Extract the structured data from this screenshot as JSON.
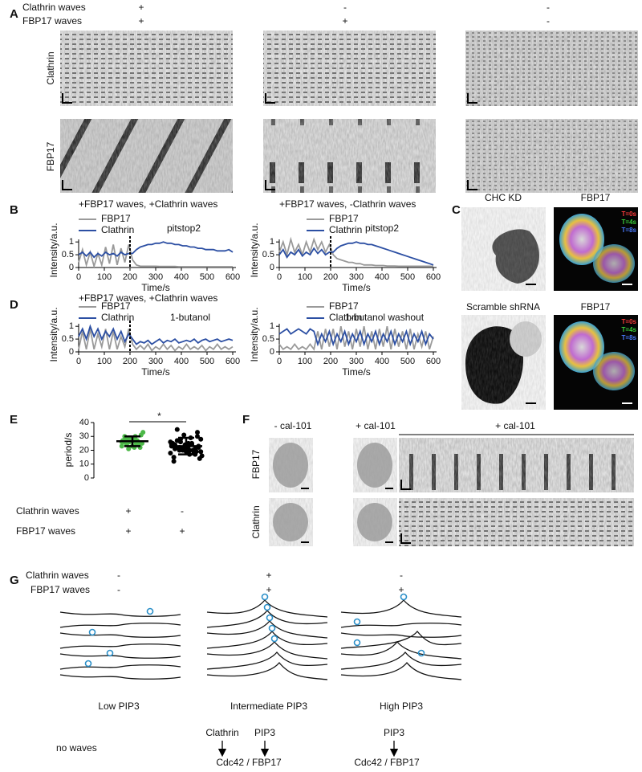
{
  "panel_labels": [
    "A",
    "B",
    "C",
    "D",
    "E",
    "F",
    "G"
  ],
  "panel_a": {
    "condition_rows": [
      {
        "label": "Clathrin waves",
        "marks": [
          "+",
          "-",
          "-"
        ]
      },
      {
        "label": "FBP17 waves",
        "marks": [
          "+",
          "+",
          "-"
        ]
      }
    ],
    "row_labels": [
      "Clathrin",
      "FBP17"
    ]
  },
  "chart_data": [
    {
      "type": "line",
      "title": "+FBP17 waves, +Clathrin waves",
      "annotation": "pitstop2",
      "marker_x": 200,
      "xlabel": "Time/s",
      "ylabel": "Intensity/a.u.",
      "xlim": [
        0,
        600
      ],
      "xticks": [
        0,
        100,
        200,
        300,
        400,
        500,
        600
      ],
      "ylim": [
        0,
        1.1
      ],
      "yticks": [
        0,
        0.5,
        1
      ],
      "x": [
        0,
        15,
        30,
        45,
        60,
        75,
        90,
        105,
        120,
        135,
        150,
        165,
        180,
        195,
        210,
        225,
        240,
        255,
        270,
        285,
        300,
        315,
        330,
        345,
        360,
        375,
        390,
        405,
        420,
        435,
        450,
        465,
        480,
        495,
        510,
        525,
        540,
        555,
        570,
        585,
        600
      ],
      "series": [
        {
          "name": "FBP17",
          "color": "#9a9a9a",
          "values": [
            0.2,
            0.7,
            0.1,
            0.6,
            0.05,
            0.55,
            0.1,
            0.8,
            0.15,
            0.9,
            0.1,
            0.75,
            0.2,
            0.9,
            0.3,
            0.1,
            0.05,
            0.05,
            0.05,
            0.05,
            0.05,
            0.04,
            0.04,
            0.04,
            0.04,
            0.04,
            0.03,
            0.03,
            0.03,
            0.03,
            0.03,
            0.03,
            0.03,
            0.03,
            0.03,
            0.03,
            0.03,
            0.03,
            0.03,
            0.03,
            0.03
          ]
        },
        {
          "name": "Clathrin",
          "color": "#2c4fa3",
          "values": [
            0.5,
            0.6,
            0.45,
            0.6,
            0.4,
            0.55,
            0.45,
            0.6,
            0.5,
            0.55,
            0.45,
            0.6,
            0.5,
            0.55,
            0.55,
            0.7,
            0.8,
            0.85,
            0.9,
            0.9,
            0.95,
            0.95,
            1.0,
            0.95,
            0.95,
            0.9,
            0.9,
            0.85,
            0.85,
            0.8,
            0.8,
            0.75,
            0.75,
            0.7,
            0.7,
            0.7,
            0.65,
            0.65,
            0.65,
            0.7,
            0.6
          ]
        }
      ]
    },
    {
      "type": "line",
      "title": "+FBP17 waves, -Clathrin waves",
      "annotation": "pitstop2",
      "marker_x": 200,
      "xlabel": "Time/s",
      "ylabel": "Intensity/a.u.",
      "xlim": [
        0,
        600
      ],
      "xticks": [
        0,
        100,
        200,
        300,
        400,
        500,
        600
      ],
      "ylim": [
        0,
        1.1
      ],
      "yticks": [
        0,
        0.5,
        1
      ],
      "x": [
        0,
        15,
        30,
        45,
        60,
        75,
        90,
        105,
        120,
        135,
        150,
        165,
        180,
        195,
        210,
        225,
        240,
        255,
        270,
        285,
        300,
        315,
        330,
        345,
        360,
        375,
        390,
        405,
        420,
        435,
        450,
        465,
        480,
        495,
        510,
        525,
        540,
        555,
        570,
        585,
        600
      ],
      "series": [
        {
          "name": "FBP17",
          "color": "#9a9a9a",
          "values": [
            0.6,
            1.0,
            0.5,
            1.1,
            0.6,
            0.9,
            0.5,
            1.0,
            0.6,
            1.1,
            0.7,
            1.0,
            0.6,
            0.9,
            0.5,
            0.35,
            0.3,
            0.25,
            0.2,
            0.2,
            0.15,
            0.15,
            0.1,
            0.1,
            0.1,
            0.08,
            0.08,
            0.08,
            0.06,
            0.06,
            0.06,
            0.05,
            0.05,
            0.05,
            0.05,
            0.05,
            0.05,
            0.05,
            0.05,
            0.05,
            0.05
          ]
        },
        {
          "name": "Clathrin",
          "color": "#2c4fa3",
          "values": [
            0.5,
            0.7,
            0.4,
            0.6,
            0.5,
            0.7,
            0.45,
            0.6,
            0.5,
            0.75,
            0.55,
            0.7,
            0.5,
            0.6,
            0.6,
            0.75,
            0.85,
            0.9,
            0.95,
            0.95,
            1.0,
            0.95,
            0.95,
            0.9,
            0.9,
            0.85,
            0.8,
            0.75,
            0.7,
            0.65,
            0.6,
            0.55,
            0.5,
            0.45,
            0.4,
            0.35,
            0.3,
            0.25,
            0.2,
            0.15,
            0.1
          ]
        }
      ]
    },
    {
      "type": "line",
      "title": "+FBP17 waves, +Clathrin waves",
      "annotation": "1-butanol",
      "marker_x": 200,
      "xlabel": "Time/s",
      "ylabel": "Intensity/a.u.",
      "xlim": [
        0,
        600
      ],
      "xticks": [
        0,
        100,
        200,
        300,
        400,
        500,
        600
      ],
      "ylim": [
        0,
        1.1
      ],
      "yticks": [
        0,
        0.5,
        1
      ],
      "x": [
        0,
        15,
        30,
        45,
        60,
        75,
        90,
        105,
        120,
        135,
        150,
        165,
        180,
        195,
        210,
        225,
        240,
        255,
        270,
        285,
        300,
        315,
        330,
        345,
        360,
        375,
        390,
        405,
        420,
        435,
        450,
        465,
        480,
        495,
        510,
        525,
        540,
        555,
        570,
        585,
        600
      ],
      "series": [
        {
          "name": "FBP17",
          "color": "#9a9a9a",
          "values": [
            0.1,
            0.8,
            0.1,
            0.9,
            0.1,
            0.7,
            0.2,
            0.9,
            0.1,
            0.8,
            0.1,
            0.6,
            0.2,
            0.9,
            0.3,
            0.1,
            0.25,
            0.1,
            0.3,
            0.05,
            0.2,
            0.1,
            0.3,
            0.1,
            0.25,
            0.05,
            0.2,
            0.1,
            0.3,
            0.1,
            0.2,
            0.1,
            0.25,
            0.05,
            0.2,
            0.1,
            0.3,
            0.1,
            0.2,
            0.1,
            0.2
          ]
        },
        {
          "name": "Clathrin",
          "color": "#2c4fa3",
          "values": [
            0.6,
            0.9,
            0.5,
            1.0,
            0.6,
            0.9,
            0.5,
            0.8,
            0.6,
            0.9,
            0.5,
            0.8,
            0.4,
            0.7,
            0.5,
            0.3,
            0.4,
            0.35,
            0.45,
            0.3,
            0.4,
            0.5,
            0.35,
            0.45,
            0.4,
            0.5,
            0.35,
            0.4,
            0.45,
            0.4,
            0.5,
            0.35,
            0.45,
            0.5,
            0.4,
            0.45,
            0.5,
            0.4,
            0.45,
            0.5,
            0.45
          ]
        }
      ]
    },
    {
      "type": "line",
      "annotation": "1-butanol washout",
      "xlabel": "Time/s",
      "ylabel": "Intensity/a.u.",
      "xlim": [
        0,
        600
      ],
      "xticks": [
        0,
        100,
        200,
        300,
        400,
        500,
        600
      ],
      "ylim": [
        0,
        1.1
      ],
      "yticks": [
        0,
        0.5,
        1
      ],
      "x": [
        0,
        15,
        30,
        45,
        60,
        75,
        90,
        105,
        120,
        135,
        150,
        165,
        180,
        195,
        210,
        225,
        240,
        255,
        270,
        285,
        300,
        315,
        330,
        345,
        360,
        375,
        390,
        405,
        420,
        435,
        450,
        465,
        480,
        495,
        510,
        525,
        540,
        555,
        570,
        585,
        600
      ],
      "series": [
        {
          "name": "FBP17",
          "color": "#9a9a9a",
          "values": [
            0.3,
            0.1,
            0.2,
            0.1,
            0.3,
            0.1,
            0.2,
            0.1,
            0.3,
            0.1,
            0.8,
            0.1,
            0.9,
            0.2,
            0.9,
            0.1,
            1.0,
            0.2,
            0.8,
            0.1,
            0.9,
            0.2,
            1.0,
            0.1,
            0.8,
            0.1,
            0.9,
            0.2,
            1.0,
            0.1,
            0.9,
            0.2,
            0.8,
            0.1,
            0.9,
            0.1,
            0.7,
            0.2,
            0.8,
            0.1,
            0.6
          ]
        },
        {
          "name": "Clathrin",
          "color": "#2c4fa3",
          "values": [
            0.7,
            0.8,
            0.9,
            0.7,
            0.8,
            0.9,
            0.8,
            0.7,
            0.9,
            0.8,
            0.3,
            0.7,
            0.4,
            0.8,
            0.3,
            0.7,
            0.4,
            0.8,
            0.3,
            0.7,
            0.4,
            0.8,
            0.3,
            0.7,
            0.4,
            0.8,
            0.3,
            0.7,
            0.4,
            0.8,
            0.3,
            0.7,
            0.4,
            0.8,
            0.3,
            0.7,
            0.4,
            0.8,
            0.3,
            0.7,
            0.5
          ]
        }
      ]
    },
    {
      "type": "dotplot",
      "ylabel": "period/s",
      "annotation": "*",
      "ylim": [
        0,
        40
      ],
      "yticks": [
        0,
        10,
        20,
        30,
        40
      ],
      "groups": [
        {
          "color": "#4cb848",
          "values": [
            26,
            30,
            24,
            22,
            28,
            27,
            25,
            29,
            31,
            23,
            26,
            27,
            21,
            25,
            28,
            30,
            24,
            26,
            33,
            22,
            27,
            25,
            29,
            23,
            26,
            28
          ],
          "mean": 26.5,
          "sd": 3.5
        },
        {
          "color": "#000000",
          "values": [
            18,
            22,
            25,
            30,
            15,
            20,
            24,
            28,
            35,
            19,
            21,
            23,
            26,
            17,
            22,
            24,
            31,
            20,
            16,
            27,
            23,
            19,
            25,
            21,
            29,
            14,
            22,
            24,
            18,
            26,
            20,
            23,
            33,
            12,
            21,
            25,
            19,
            27,
            22,
            17,
            24,
            28,
            20,
            23,
            21
          ],
          "mean": 23,
          "sd": 6
        }
      ],
      "conditions": [
        {
          "label": "Clathrin waves",
          "marks": [
            "+",
            "-"
          ]
        },
        {
          "label": "FBP17 waves",
          "marks": [
            "+",
            "+"
          ]
        }
      ]
    }
  ],
  "panel_c": {
    "rows": [
      {
        "left": "CHC KD",
        "right": "FBP17"
      },
      {
        "left": "Scramble shRNA",
        "right": "FBP17"
      }
    ],
    "time_legend": [
      {
        "label": "T=0s",
        "color": "#ff3b3b"
      },
      {
        "label": "T=4s",
        "color": "#3bd13b"
      },
      {
        "label": "T=8s",
        "color": "#4a7bff"
      }
    ]
  },
  "panel_f": {
    "columns": [
      "- cal-101",
      "+ cal-101"
    ],
    "kymo_label": "+ cal-101",
    "row_labels": [
      "FBP17",
      "Clathrin"
    ]
  },
  "panel_g": {
    "condition_rows": [
      {
        "label": "Clathrin waves",
        "marks": [
          "-",
          "+",
          "-"
        ]
      },
      {
        "label": "FBP17 waves",
        "marks": [
          "-",
          "+",
          "+"
        ]
      }
    ],
    "captions": [
      "Low PIP3",
      "Intermediate PIP3",
      "High PIP3"
    ],
    "pathways": {
      "left": "no waves",
      "middle_inputs": [
        "Clathrin",
        "PIP3"
      ],
      "middle_output": "Cdc42 / FBP17",
      "right_input": "PIP3",
      "right_output": "Cdc42 / FBP17"
    }
  }
}
